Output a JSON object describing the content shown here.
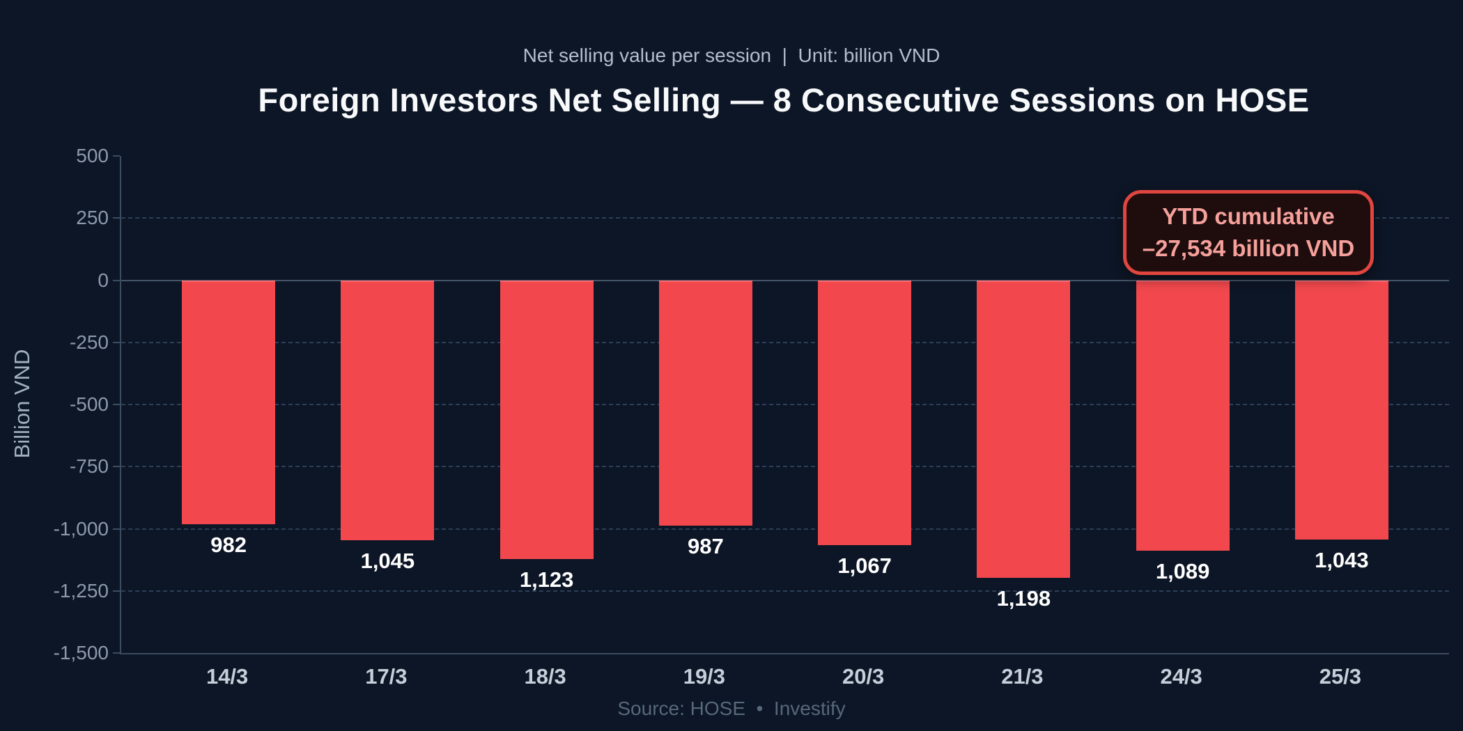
{
  "header": {
    "subtitle": "Net selling value per session  |  Unit: billion VND",
    "title": "Foreign Investors Net Selling — 8 Consecutive Sessions on HOSE"
  },
  "chart_data": {
    "type": "bar",
    "title": "Foreign Investors Net Selling — 8 Consecutive Sessions on HOSE",
    "subtitle": "Net selling value per session | Unit: billion VND",
    "categories": [
      "14/3",
      "17/3",
      "18/3",
      "19/3",
      "20/3",
      "21/3",
      "24/3",
      "25/3"
    ],
    "values": [
      -982,
      -1045,
      -1123,
      -987,
      -1067,
      -1198,
      -1089,
      -1043
    ],
    "bar_value_labels": [
      "982",
      "1,045",
      "1,123",
      "987",
      "1,067",
      "1,198",
      "1,089",
      "1,043"
    ],
    "xlabel": "",
    "ylabel": "Billion VND",
    "unit": "billion VND",
    "ylim": [
      -1500,
      500
    ],
    "yticks": [
      500,
      250,
      0,
      -250,
      -500,
      -750,
      -1000,
      -1250,
      -1500
    ],
    "ytick_labels": [
      "500",
      "250",
      "0",
      "-250",
      "-500",
      "-750",
      "-1,000",
      "-1,250",
      "-1,500"
    ],
    "grid": "horizontal-dashed",
    "legend": "none",
    "bar_color": "#f2484d"
  },
  "annotation": {
    "line1": "YTD cumulative",
    "line2": "–27,534 billion VND"
  },
  "footer": {
    "source": "Source: HOSE  •  Investify"
  },
  "colors": {
    "background": "#0d1626",
    "bar": "#f2484d",
    "annotation_border": "#e0463f",
    "annotation_bg": "#1f0d0e",
    "annotation_text": "#f5a09b",
    "title_text": "#f7f9fb",
    "subtitle_text": "#b3bfcd",
    "ytick_text": "#8d9aab",
    "xtick_text": "#c5ced9",
    "value_label_text": "#ffffff",
    "grid_line": "#2c3e58",
    "zero_line": "#46566a",
    "axis_line": "#3c4c60",
    "footer_text": "#566879"
  }
}
